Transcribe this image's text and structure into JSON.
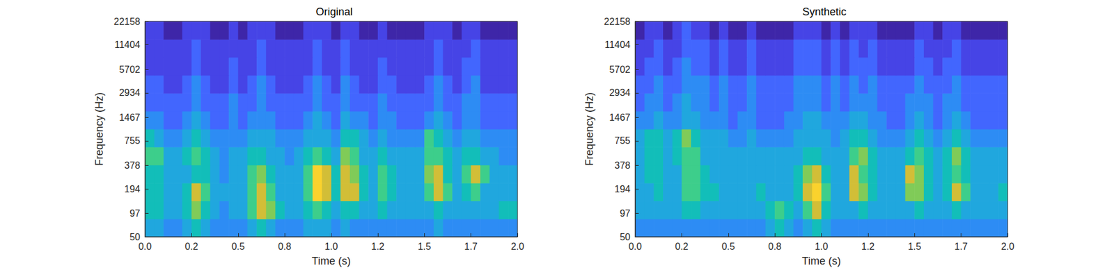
{
  "chart_data": [
    {
      "type": "heatmap",
      "title": "Original",
      "xlabel": "Time (s)",
      "ylabel": "Frequency (Hz)",
      "log": "y",
      "xlim": [
        0,
        2
      ],
      "ylim": [
        50,
        22158
      ],
      "xticks": [
        {
          "value": 0,
          "label": "0.0"
        },
        {
          "value": 0.25,
          "label": "0.2"
        },
        {
          "value": 0.5,
          "label": "0.5"
        },
        {
          "value": 0.75,
          "label": "0.8"
        },
        {
          "value": 1,
          "label": "1.0"
        },
        {
          "value": 1.25,
          "label": "1.2"
        },
        {
          "value": 1.5,
          "label": "1.5"
        },
        {
          "value": 1.75,
          "label": "1.7"
        },
        {
          "value": 2,
          "label": "2.0"
        }
      ],
      "yticks": [
        50,
        97,
        194,
        378,
        755,
        1467,
        2934,
        5702,
        11404,
        22158
      ],
      "x_edges": [
        0,
        0.05,
        0.1,
        0.15,
        0.2,
        0.25,
        0.3,
        0.35,
        0.4,
        0.45,
        0.5,
        0.55,
        0.6,
        0.65,
        0.7,
        0.75,
        0.8,
        0.85,
        0.9,
        0.95,
        1,
        1.05,
        1.1,
        1.15,
        1.2,
        1.25,
        1.3,
        1.35,
        1.4,
        1.45,
        1.5,
        1.55,
        1.6,
        1.65,
        1.7,
        1.75,
        1.8,
        1.85,
        1.9,
        1.95,
        2
      ],
      "y_edges": [
        50,
        83,
        138,
        229,
        381,
        634,
        1053,
        1749,
        2907,
        4830,
        8026,
        13337,
        22158
      ],
      "clim": [
        0,
        10
      ],
      "cells": [
        [
          4,
          4,
          3,
          3,
          4,
          5,
          4,
          3,
          3,
          3,
          3,
          4,
          5,
          4,
          3,
          3,
          3,
          4,
          4,
          4,
          3,
          4,
          3,
          3,
          3,
          3,
          3,
          3,
          3,
          3,
          3,
          4,
          3,
          3,
          3,
          3,
          3,
          3,
          3,
          3
        ],
        [
          5,
          5,
          4,
          4,
          5,
          7,
          5,
          4,
          3,
          4,
          4,
          6,
          8,
          7,
          5,
          4,
          4,
          5,
          6,
          5,
          4,
          5,
          5,
          4,
          4,
          5,
          4,
          4,
          4,
          4,
          4,
          5,
          4,
          4,
          4,
          4,
          4,
          4,
          5,
          5
        ],
        [
          5,
          5,
          4,
          4,
          5,
          8,
          6,
          4,
          4,
          4,
          4,
          6,
          8,
          6,
          4,
          4,
          4,
          6,
          9,
          8,
          5,
          8,
          8,
          5,
          4,
          6,
          5,
          4,
          4,
          4,
          6,
          8,
          6,
          4,
          5,
          6,
          4,
          4,
          4,
          4
        ],
        [
          5,
          5,
          4,
          4,
          4,
          5,
          5,
          4,
          3,
          4,
          4,
          6,
          7,
          5,
          4,
          4,
          4,
          6,
          9,
          8,
          5,
          8,
          7,
          5,
          4,
          6,
          5,
          4,
          4,
          4,
          7,
          8,
          5,
          4,
          6,
          8,
          6,
          4,
          4,
          4
        ],
        [
          6,
          6,
          4,
          4,
          5,
          6,
          5,
          4,
          3,
          4,
          4,
          5,
          5,
          4,
          4,
          3,
          4,
          5,
          6,
          5,
          4,
          7,
          6,
          4,
          4,
          5,
          4,
          4,
          4,
          4,
          6,
          6,
          5,
          4,
          5,
          5,
          4,
          4,
          3,
          3
        ],
        [
          5,
          4,
          3,
          3,
          4,
          5,
          4,
          3,
          3,
          3,
          3,
          4,
          4,
          4,
          3,
          3,
          3,
          4,
          4,
          4,
          3,
          5,
          5,
          4,
          3,
          4,
          3,
          3,
          3,
          3,
          6,
          5,
          4,
          3,
          4,
          4,
          3,
          3,
          3,
          3
        ],
        [
          3,
          3,
          2,
          2,
          3,
          4,
          3,
          2,
          2,
          3,
          2,
          3,
          3,
          3,
          2,
          2,
          2,
          3,
          4,
          3,
          2,
          4,
          3,
          3,
          2,
          3,
          3,
          2,
          2,
          2,
          3,
          4,
          3,
          2,
          3,
          3,
          2,
          2,
          2,
          2
        ],
        [
          2,
          2,
          2,
          2,
          2,
          3,
          2,
          2,
          2,
          3,
          2,
          2,
          3,
          2,
          2,
          2,
          2,
          2,
          3,
          2,
          2,
          3,
          2,
          2,
          2,
          3,
          2,
          2,
          2,
          2,
          2,
          3,
          2,
          2,
          3,
          3,
          2,
          2,
          2,
          2
        ],
        [
          2,
          2,
          1,
          1,
          2,
          3,
          2,
          1,
          1,
          2,
          1,
          2,
          3,
          2,
          1,
          1,
          1,
          2,
          3,
          2,
          1,
          3,
          2,
          1,
          1,
          2,
          2,
          1,
          1,
          1,
          2,
          3,
          2,
          1,
          2,
          3,
          1,
          1,
          1,
          1
        ],
        [
          1,
          1,
          1,
          1,
          1,
          2,
          1,
          1,
          1,
          2,
          1,
          1,
          2,
          1,
          1,
          1,
          1,
          1,
          2,
          1,
          1,
          2,
          1,
          1,
          1,
          2,
          1,
          1,
          1,
          1,
          1,
          2,
          1,
          1,
          2,
          2,
          1,
          1,
          1,
          1
        ],
        [
          1,
          1,
          1,
          1,
          1,
          2,
          1,
          1,
          1,
          1,
          1,
          1,
          2,
          1,
          1,
          1,
          1,
          1,
          2,
          1,
          1,
          2,
          1,
          1,
          1,
          1,
          1,
          1,
          1,
          1,
          1,
          2,
          1,
          1,
          1,
          2,
          1,
          1,
          1,
          1
        ],
        [
          1,
          1,
          0,
          0,
          1,
          1,
          1,
          0,
          0,
          1,
          0,
          1,
          1,
          1,
          0,
          0,
          0,
          1,
          1,
          1,
          0,
          1,
          1,
          0,
          0,
          1,
          0,
          0,
          0,
          0,
          1,
          1,
          1,
          0,
          1,
          1,
          0,
          0,
          0,
          0
        ]
      ]
    },
    {
      "type": "heatmap",
      "title": "Synthetic",
      "xlabel": "Time (s)",
      "ylabel": "Frequency (Hz)",
      "log": "y",
      "xlim": [
        0,
        2
      ],
      "ylim": [
        50,
        22158
      ],
      "xticks": [
        {
          "value": 0,
          "label": "0.0"
        },
        {
          "value": 0.25,
          "label": "0.2"
        },
        {
          "value": 0.5,
          "label": "0.5"
        },
        {
          "value": 0.75,
          "label": "0.8"
        },
        {
          "value": 1,
          "label": "1.0"
        },
        {
          "value": 1.25,
          "label": "1.2"
        },
        {
          "value": 1.5,
          "label": "1.5"
        },
        {
          "value": 1.75,
          "label": "1.7"
        },
        {
          "value": 2,
          "label": "2.0"
        }
      ],
      "yticks": [
        50,
        97,
        194,
        378,
        755,
        1467,
        2934,
        5702,
        11404,
        22158
      ],
      "x_edges": [
        0,
        0.05,
        0.1,
        0.15,
        0.2,
        0.25,
        0.3,
        0.35,
        0.4,
        0.45,
        0.5,
        0.55,
        0.6,
        0.65,
        0.7,
        0.75,
        0.8,
        0.85,
        0.9,
        0.95,
        1,
        1.05,
        1.1,
        1.15,
        1.2,
        1.25,
        1.3,
        1.35,
        1.4,
        1.45,
        1.5,
        1.55,
        1.6,
        1.65,
        1.7,
        1.75,
        1.8,
        1.85,
        1.9,
        1.95,
        2
      ],
      "y_edges": [
        50,
        83,
        138,
        229,
        381,
        634,
        1053,
        1749,
        2907,
        4830,
        8026,
        13337,
        22158
      ],
      "clim": [
        0,
        10
      ],
      "cells": [
        [
          3,
          3,
          3,
          3,
          3,
          3,
          3,
          3,
          3,
          3,
          3,
          3,
          3,
          3,
          4,
          5,
          4,
          3,
          4,
          5,
          4,
          3,
          3,
          3,
          3,
          3,
          3,
          3,
          3,
          3,
          3,
          3,
          3,
          3,
          3,
          3,
          3,
          3,
          3,
          3
        ],
        [
          4,
          4,
          4,
          4,
          4,
          5,
          5,
          4,
          4,
          4,
          4,
          4,
          4,
          4,
          5,
          6,
          5,
          4,
          6,
          8,
          5,
          4,
          4,
          4,
          5,
          4,
          4,
          4,
          4,
          4,
          5,
          4,
          4,
          4,
          5,
          4,
          4,
          4,
          4,
          4
        ],
        [
          4,
          4,
          5,
          4,
          4,
          6,
          6,
          5,
          5,
          4,
          4,
          4,
          4,
          5,
          4,
          4,
          4,
          5,
          8,
          9,
          6,
          4,
          4,
          8,
          7,
          5,
          4,
          4,
          4,
          7,
          7,
          5,
          4,
          5,
          8,
          6,
          4,
          4,
          4,
          5
        ],
        [
          4,
          5,
          5,
          4,
          4,
          6,
          6,
          5,
          4,
          4,
          4,
          4,
          4,
          4,
          4,
          4,
          4,
          5,
          7,
          8,
          5,
          4,
          4,
          8,
          6,
          5,
          4,
          4,
          4,
          8,
          7,
          5,
          4,
          5,
          6,
          5,
          4,
          4,
          4,
          4
        ],
        [
          4,
          5,
          5,
          4,
          5,
          6,
          6,
          4,
          4,
          4,
          4,
          4,
          4,
          4,
          4,
          4,
          4,
          4,
          5,
          5,
          4,
          4,
          4,
          6,
          7,
          5,
          4,
          4,
          4,
          5,
          6,
          5,
          4,
          5,
          7,
          5,
          4,
          4,
          4,
          4
        ],
        [
          4,
          5,
          5,
          4,
          5,
          7,
          5,
          4,
          4,
          4,
          3,
          3,
          4,
          3,
          3,
          3,
          3,
          4,
          4,
          4,
          4,
          3,
          4,
          5,
          5,
          4,
          3,
          3,
          3,
          4,
          5,
          4,
          3,
          4,
          5,
          4,
          3,
          3,
          3,
          3
        ],
        [
          3,
          3,
          4,
          3,
          3,
          4,
          4,
          3,
          3,
          3,
          2,
          3,
          3,
          2,
          2,
          2,
          3,
          3,
          4,
          4,
          3,
          3,
          3,
          4,
          4,
          3,
          3,
          2,
          2,
          3,
          4,
          3,
          2,
          3,
          4,
          3,
          2,
          2,
          2,
          2
        ],
        [
          2,
          3,
          3,
          2,
          3,
          4,
          3,
          3,
          2,
          3,
          2,
          2,
          3,
          2,
          2,
          2,
          2,
          3,
          3,
          3,
          2,
          3,
          2,
          3,
          3,
          3,
          2,
          2,
          2,
          3,
          3,
          3,
          2,
          3,
          3,
          2,
          2,
          2,
          2,
          2
        ],
        [
          2,
          2,
          3,
          2,
          2,
          3,
          3,
          3,
          2,
          3,
          2,
          2,
          3,
          2,
          2,
          2,
          2,
          3,
          3,
          3,
          2,
          3,
          2,
          3,
          2,
          3,
          2,
          2,
          2,
          2,
          3,
          2,
          2,
          2,
          3,
          2,
          2,
          2,
          2,
          2
        ],
        [
          1,
          2,
          2,
          1,
          2,
          3,
          2,
          2,
          1,
          2,
          1,
          1,
          2,
          1,
          1,
          1,
          1,
          2,
          2,
          2,
          1,
          2,
          1,
          2,
          2,
          2,
          1,
          1,
          1,
          1,
          2,
          2,
          1,
          2,
          2,
          1,
          1,
          1,
          1,
          1
        ],
        [
          1,
          1,
          2,
          1,
          1,
          2,
          2,
          2,
          1,
          2,
          1,
          1,
          2,
          1,
          1,
          1,
          1,
          2,
          2,
          2,
          1,
          2,
          1,
          2,
          1,
          2,
          1,
          1,
          1,
          1,
          2,
          1,
          1,
          1,
          2,
          1,
          1,
          1,
          1,
          1
        ],
        [
          0,
          1,
          1,
          0,
          1,
          2,
          1,
          1,
          0,
          1,
          0,
          0,
          1,
          0,
          0,
          0,
          0,
          1,
          1,
          1,
          0,
          1,
          0,
          1,
          1,
          1,
          0,
          0,
          0,
          0,
          1,
          1,
          0,
          1,
          1,
          0,
          0,
          0,
          0,
          0
        ]
      ]
    }
  ]
}
